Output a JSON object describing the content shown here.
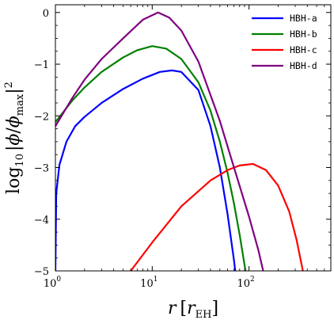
{
  "chart_data": {
    "type": "line",
    "xlabel": "r [r_EH]",
    "ylabel": "log10 |φ/φ_max|^2",
    "x_scale": "log",
    "xlim": [
      1,
      700
    ],
    "ylim": [
      -5,
      0.15
    ],
    "x_ticks": [
      {
        "value": 1,
        "label": "10^0"
      },
      {
        "value": 10,
        "label": "10^1"
      },
      {
        "value": 100,
        "label": "10^2"
      }
    ],
    "y_ticks": [
      {
        "value": 0,
        "label": "0"
      },
      {
        "value": -1,
        "label": "−1"
      },
      {
        "value": -2,
        "label": "−2"
      },
      {
        "value": -3,
        "label": "−3"
      },
      {
        "value": -4,
        "label": "−4"
      },
      {
        "value": -5,
        "label": "−5"
      }
    ],
    "grid": false,
    "legend_position": "top-right",
    "series": [
      {
        "name": "HBH-a",
        "color": "#0000ff",
        "points": [
          [
            1.0,
            -5.0
          ],
          [
            1.02,
            -3.5
          ],
          [
            1.1,
            -2.95
          ],
          [
            1.3,
            -2.5
          ],
          [
            1.6,
            -2.2
          ],
          [
            2.0,
            -2.02
          ],
          [
            3.0,
            -1.75
          ],
          [
            5.0,
            -1.48
          ],
          [
            8.0,
            -1.28
          ],
          [
            12.0,
            -1.15
          ],
          [
            16.0,
            -1.12
          ],
          [
            20.0,
            -1.15
          ],
          [
            30.0,
            -1.5
          ],
          [
            40.0,
            -2.2
          ],
          [
            50.0,
            -3.0
          ],
          [
            60.0,
            -3.9
          ],
          [
            70.0,
            -4.8
          ],
          [
            72.0,
            -5.0
          ]
        ]
      },
      {
        "name": "HBH-b",
        "color": "#008000",
        "points": [
          [
            1.0,
            -2.12
          ],
          [
            1.5,
            -1.7
          ],
          [
            2.0,
            -1.45
          ],
          [
            3.0,
            -1.15
          ],
          [
            5.0,
            -0.87
          ],
          [
            7.0,
            -0.73
          ],
          [
            10.0,
            -0.65
          ],
          [
            14.0,
            -0.7
          ],
          [
            20.0,
            -0.9
          ],
          [
            30.0,
            -1.35
          ],
          [
            40.0,
            -1.9
          ],
          [
            50.0,
            -2.5
          ],
          [
            60.0,
            -3.1
          ],
          [
            70.0,
            -3.7
          ],
          [
            80.0,
            -4.3
          ],
          [
            92.0,
            -5.0
          ]
        ]
      },
      {
        "name": "HBH-c",
        "color": "#ff0000",
        "points": [
          [
            6.0,
            -5.0
          ],
          [
            10.0,
            -4.45
          ],
          [
            20.0,
            -3.75
          ],
          [
            40.0,
            -3.25
          ],
          [
            60.0,
            -3.05
          ],
          [
            80.0,
            -2.96
          ],
          [
            110.0,
            -2.93
          ],
          [
            150.0,
            -3.05
          ],
          [
            200.0,
            -3.35
          ],
          [
            260.0,
            -3.85
          ],
          [
            310.0,
            -4.4
          ],
          [
            360.0,
            -5.0
          ]
        ]
      },
      {
        "name": "HBH-d",
        "color": "#800080",
        "points": [
          [
            1.0,
            -2.2
          ],
          [
            1.5,
            -1.65
          ],
          [
            2.0,
            -1.3
          ],
          [
            3.0,
            -0.9
          ],
          [
            5.0,
            -0.5
          ],
          [
            8.0,
            -0.14
          ],
          [
            11.5,
            0.0
          ],
          [
            15.0,
            -0.1
          ],
          [
            20.0,
            -0.35
          ],
          [
            30.0,
            -0.95
          ],
          [
            50.0,
            -2.1
          ],
          [
            70.0,
            -3.0
          ],
          [
            100.0,
            -3.95
          ],
          [
            125.0,
            -4.6
          ],
          [
            140.0,
            -5.0
          ]
        ]
      }
    ]
  }
}
